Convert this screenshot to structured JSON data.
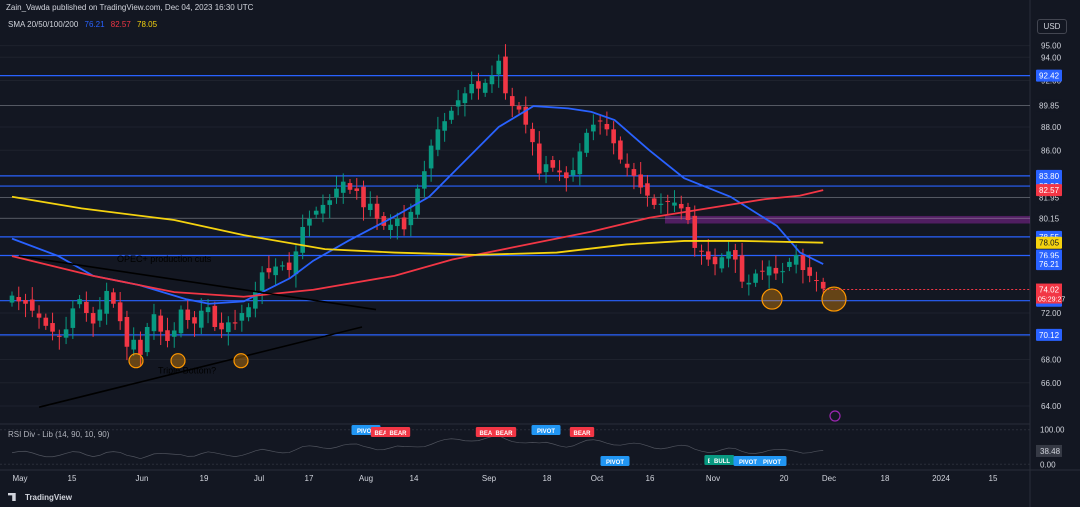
{
  "header": {
    "publisher": "Zain_Vawda published on TradingView.com, Dec 04, 2023 16:30 UTC",
    "currency_button": "USD",
    "logo_text": "TradingView"
  },
  "legend": {
    "label": "SMA 20/50/100/200",
    "v20": "76.21",
    "v50": "82.57",
    "v100": "78.05",
    "c20": "#2962ff",
    "c50": "#f23645",
    "c100": "#f5d30f"
  },
  "colors": {
    "up": "#089981",
    "down": "#f23645",
    "hline": "#2962ff",
    "zone": "#9c27b0",
    "circle": "#ff9800",
    "trend": "#000000"
  },
  "chart_data": [
    {
      "type": "candlestick",
      "title": "",
      "ylim": [
        62.8,
        96.0
      ],
      "x_ticks": [
        "May",
        "15",
        "Jun",
        "19",
        "Jul",
        "17",
        "Aug",
        "14",
        "Sep",
        "18",
        "Oct",
        "16",
        "Nov",
        "20",
        "Dec",
        "18",
        "2024",
        "15"
      ],
      "y_ticks": [
        "95.00",
        "94.00",
        "92.00",
        "89.85",
        "88.00",
        "86.00",
        "83.80",
        "81.95",
        "80.15",
        "76.95",
        "72.00",
        "70.00",
        "68.00",
        "66.00",
        "64.00"
      ],
      "close_path": [
        73.5,
        73.0,
        72.8,
        72.2,
        71.6,
        70.9,
        70.4,
        70.0,
        70.6,
        72.4,
        73.2,
        72.0,
        71.1,
        72.3,
        73.9,
        72.8,
        71.3,
        69.1,
        69.7,
        68.4,
        70.8,
        71.9,
        70.4,
        69.6,
        70.5,
        72.3,
        71.4,
        71.1,
        72.2,
        72.5,
        70.8,
        70.6,
        71.2,
        71.1,
        72.0,
        72.5,
        73.8,
        75.5,
        75.5,
        76.0,
        76.1,
        75.7,
        77.3,
        79.4,
        80.1,
        80.8,
        81.3,
        81.7,
        82.7,
        83.3,
        82.6,
        82.5,
        81.1,
        81.4,
        80.1,
        79.5,
        79.6,
        80.1,
        79.2,
        80.7,
        82.7,
        84.2,
        86.4,
        87.8,
        88.5,
        89.4,
        90.3,
        90.9,
        91.7,
        91.3,
        91.8,
        92.4,
        93.7,
        90.9,
        89.8,
        89.5,
        88.2,
        86.7,
        84.0,
        84.8,
        84.5,
        84.1,
        83.6,
        84.3,
        85.9,
        87.5,
        88.2,
        88.5,
        87.8,
        86.6,
        85.2,
        84.5,
        83.8,
        82.8,
        82.1,
        81.3,
        81.4,
        81.6,
        81.5,
        81.0,
        80.0,
        77.6,
        77.3,
        76.6,
        76.2,
        76.8,
        77.3,
        76.6,
        74.7,
        74.6,
        75.4,
        75.6,
        76.0,
        75.4,
        75.6,
        76.4,
        77.0,
        75.7,
        75.2,
        74.8,
        74.1
      ],
      "series": [
        {
          "name": "SMA 20",
          "last": "76.21",
          "color": "#2962ff",
          "values": [
            [
              0,
              78.4
            ],
            [
              8,
              76.9
            ],
            [
              14,
              75.2
            ],
            [
              22,
              74.4
            ],
            [
              30,
              73.2
            ],
            [
              34,
              72.8
            ],
            [
              40,
              73.0
            ],
            [
              48,
              75.0
            ],
            [
              52,
              76.5
            ],
            [
              58,
              78.2
            ],
            [
              66,
              80.3
            ],
            [
              72,
              82.0
            ],
            [
              78,
              85.0
            ],
            [
              84,
              88.0
            ],
            [
              90,
              89.8
            ],
            [
              96,
              89.6
            ],
            [
              100,
              89.3
            ],
            [
              104,
              88.6
            ],
            [
              110,
              86.0
            ],
            [
              116,
              83.6
            ],
            [
              124,
              82.0
            ],
            [
              132,
              79.5
            ],
            [
              136,
              77.2
            ],
            [
              140,
              76.21
            ]
          ]
        },
        {
          "name": "SMA 50",
          "last": "82.57",
          "color": "#f23645",
          "values": [
            [
              0,
              76.9
            ],
            [
              14,
              75.2
            ],
            [
              28,
              73.8
            ],
            [
              40,
              73.4
            ],
            [
              52,
              74.0
            ],
            [
              66,
              75.2
            ],
            [
              76,
              76.6
            ],
            [
              86,
              77.6
            ],
            [
              100,
              79.0
            ],
            [
              110,
              80.2
            ],
            [
              120,
              81.0
            ],
            [
              130,
              81.8
            ],
            [
              136,
              82.1
            ],
            [
              140,
              82.57
            ]
          ]
        },
        {
          "name": "SMA 100",
          "last": "78.05",
          "color": "#f5d30f",
          "values": [
            [
              0,
              82.0
            ],
            [
              12,
              81.0
            ],
            [
              28,
              80.0
            ],
            [
              40,
              78.7
            ],
            [
              54,
              77.5
            ],
            [
              66,
              77.2
            ],
            [
              80,
              77.0
            ],
            [
              94,
              77.2
            ],
            [
              106,
              77.9
            ],
            [
              116,
              78.2
            ],
            [
              126,
              78.2
            ],
            [
              140,
              78.05
            ]
          ]
        }
      ],
      "price_levels": [
        {
          "value": 92.42,
          "label": "92.42"
        },
        {
          "value": 89.85,
          "label": "89.85"
        },
        {
          "value": 83.8,
          "label": "83.80"
        },
        {
          "value": 82.92,
          "label": "82.92"
        },
        {
          "value": 81.95,
          "label": "81.95"
        },
        {
          "value": 80.15,
          "label": "80.15"
        },
        {
          "value": 78.55,
          "label": "78.55"
        },
        {
          "value": 76.95,
          "label": "76.95"
        },
        {
          "value": 73.06,
          "label": "73.06"
        },
        {
          "value": 70.12,
          "label": "70.12"
        }
      ],
      "last_price": {
        "value": 74.02,
        "label": "74.02",
        "countdown": "05:29:27"
      },
      "annotations": [
        "OPEC+ production cuts",
        "Triple Bottom?"
      ],
      "grid": true
    },
    {
      "type": "line",
      "title": "RSI Div - Lib (14, 90, 10, 90)",
      "ylim": [
        -5,
        105
      ],
      "y_ticks": [
        "100.00",
        "38.48",
        "0.00"
      ],
      "last": "38.48",
      "signals": [
        {
          "label": "PIVOT",
          "kind": "pivot-top"
        },
        {
          "label": "BEAR",
          "kind": "bear"
        },
        {
          "label": "BEAR",
          "kind": "bear"
        },
        {
          "label": "BEAR",
          "kind": "bear"
        },
        {
          "label": "BEAR",
          "kind": "bear"
        },
        {
          "label": "PIVOT",
          "kind": "pivot-top"
        },
        {
          "label": "BEAR",
          "kind": "bear"
        },
        {
          "label": "PIVOT",
          "kind": "pivot-bottom"
        },
        {
          "label": "BU",
          "kind": "bull"
        },
        {
          "label": "BULL",
          "kind": "bull"
        },
        {
          "label": "PIVOT",
          "kind": "pivot-bottom"
        },
        {
          "label": "PIVOT",
          "kind": "pivot-bottom"
        }
      ]
    }
  ]
}
